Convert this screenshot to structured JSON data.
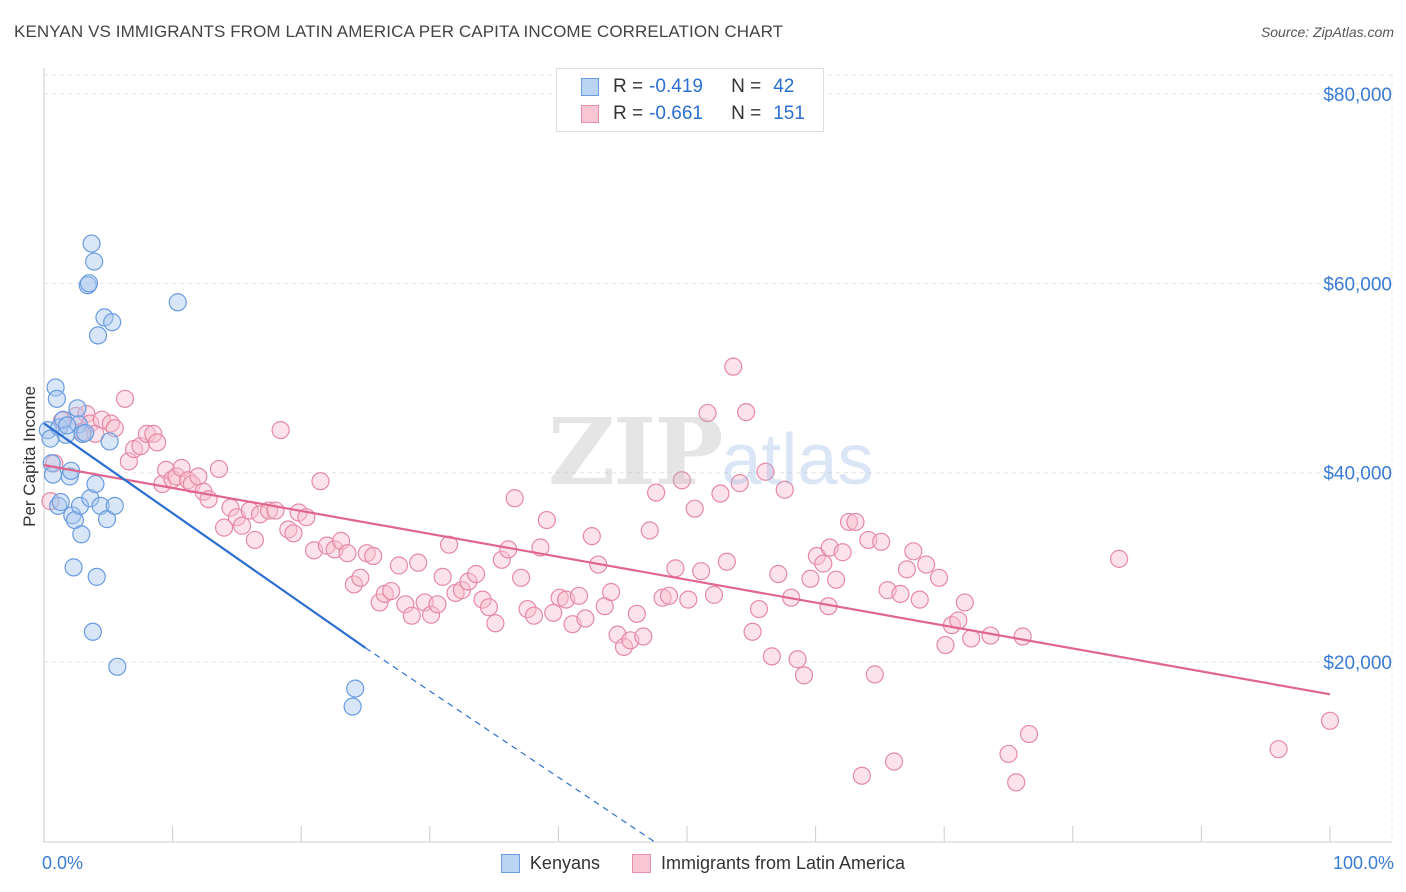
{
  "title": "KENYAN VS IMMIGRANTS FROM LATIN AMERICA PER CAPITA INCOME CORRELATION CHART",
  "source": "Source: ZipAtlas.com",
  "watermark": {
    "zip": "ZIP",
    "atlas": "atlas"
  },
  "legend": {
    "series1": {
      "r_label": "R =",
      "r_value": "-0.419",
      "n_label": "N =",
      "n_value": "42"
    },
    "series2": {
      "r_label": "R =",
      "r_value": "-0.661",
      "n_label": "N =",
      "n_value": "151"
    }
  },
  "bottom_legend": {
    "series1": "Kenyans",
    "series2": "Immigrants from Latin America"
  },
  "colors": {
    "blue_fill": "#a8c8f0",
    "blue_stroke": "#6a9ce0",
    "blue_line": "#2d6fd0",
    "pink_fill": "#f8bfd0",
    "pink_stroke": "#e58aa6",
    "pink_line": "#e0668e",
    "axis_label": "#3a7bd5",
    "grid": "#e3e3e3"
  },
  "chart_data": {
    "type": "scatter",
    "title": "KENYAN VS IMMIGRANTS FROM LATIN AMERICA PER CAPITA INCOME CORRELATION CHART",
    "xlabel": "",
    "ylabel": "Per Capita Income",
    "xlim": [
      0,
      100
    ],
    "ylim": [
      1000,
      82000
    ],
    "x_tick_labels": [
      "0.0%",
      "100.0%"
    ],
    "y_ticks": [
      20000,
      40000,
      60000,
      80000
    ],
    "y_tick_labels": [
      "$20,000",
      "$40,000",
      "$60,000",
      "$80,000"
    ],
    "grid": true,
    "legend_position": "top-center",
    "series": [
      {
        "name": "Kenyans",
        "color": "#6a9ce0",
        "trend": {
          "x": [
            0,
            25
          ],
          "y": [
            45200,
            21500
          ],
          "dashed_extension_to": [
            47.5,
            1000
          ]
        },
        "points": [
          [
            0.3,
            44500
          ],
          [
            0.5,
            43600
          ],
          [
            0.6,
            41000
          ],
          [
            0.7,
            39800
          ],
          [
            0.9,
            49000
          ],
          [
            1.0,
            47800
          ],
          [
            1.1,
            36500
          ],
          [
            1.2,
            44800
          ],
          [
            1.3,
            36900
          ],
          [
            1.5,
            45600
          ],
          [
            1.7,
            44000
          ],
          [
            2.0,
            39600
          ],
          [
            2.1,
            40200
          ],
          [
            2.2,
            35500
          ],
          [
            2.3,
            30000
          ],
          [
            2.4,
            35000
          ],
          [
            2.6,
            46800
          ],
          [
            2.7,
            45100
          ],
          [
            2.8,
            36500
          ],
          [
            2.9,
            33500
          ],
          [
            3.0,
            44100
          ],
          [
            3.2,
            44200
          ],
          [
            3.4,
            59800
          ],
          [
            3.5,
            60000
          ],
          [
            3.6,
            37300
          ],
          [
            3.7,
            64200
          ],
          [
            3.8,
            23200
          ],
          [
            3.9,
            62300
          ],
          [
            4.0,
            38800
          ],
          [
            4.1,
            29000
          ],
          [
            4.2,
            54500
          ],
          [
            4.4,
            36500
          ],
          [
            4.7,
            56400
          ],
          [
            4.9,
            35100
          ],
          [
            5.1,
            43300
          ],
          [
            5.3,
            55900
          ],
          [
            5.5,
            36500
          ],
          [
            5.7,
            19500
          ],
          [
            10.4,
            58000
          ],
          [
            24.2,
            17200
          ],
          [
            24.0,
            15300
          ],
          [
            1.8,
            45000
          ]
        ]
      },
      {
        "name": "Immigrants from Latin America",
        "color": "#e58aa6",
        "trend": {
          "x": [
            0,
            100
          ],
          "y": [
            40800,
            16600
          ]
        },
        "points": [
          [
            0.5,
            37000
          ],
          [
            0.8,
            41000
          ],
          [
            1.4,
            45500
          ],
          [
            2.5,
            46000
          ],
          [
            3.0,
            44300
          ],
          [
            3.3,
            46200
          ],
          [
            3.6,
            45200
          ],
          [
            4.0,
            44100
          ],
          [
            4.5,
            45600
          ],
          [
            5.2,
            45200
          ],
          [
            5.5,
            44700
          ],
          [
            6.3,
            47800
          ],
          [
            6.6,
            41200
          ],
          [
            7.0,
            42500
          ],
          [
            7.5,
            42800
          ],
          [
            8.0,
            44100
          ],
          [
            8.5,
            44100
          ],
          [
            8.8,
            43200
          ],
          [
            9.2,
            38800
          ],
          [
            9.5,
            40300
          ],
          [
            10.0,
            39300
          ],
          [
            10.3,
            39600
          ],
          [
            10.7,
            40500
          ],
          [
            11.2,
            39200
          ],
          [
            11.5,
            38800
          ],
          [
            12.0,
            39600
          ],
          [
            12.4,
            38000
          ],
          [
            12.8,
            37200
          ],
          [
            13.6,
            40400
          ],
          [
            14.0,
            34200
          ],
          [
            14.5,
            36300
          ],
          [
            15.0,
            35300
          ],
          [
            15.4,
            34400
          ],
          [
            16.0,
            36000
          ],
          [
            16.4,
            32900
          ],
          [
            16.8,
            35600
          ],
          [
            17.5,
            36000
          ],
          [
            18.0,
            36000
          ],
          [
            18.4,
            44500
          ],
          [
            19.0,
            34000
          ],
          [
            19.4,
            33600
          ],
          [
            19.8,
            35800
          ],
          [
            20.4,
            35300
          ],
          [
            21.0,
            31800
          ],
          [
            21.5,
            39100
          ],
          [
            22.0,
            32300
          ],
          [
            22.6,
            31900
          ],
          [
            23.1,
            32800
          ],
          [
            23.6,
            31500
          ],
          [
            24.1,
            28200
          ],
          [
            24.6,
            28900
          ],
          [
            25.1,
            31500
          ],
          [
            25.6,
            31200
          ],
          [
            26.1,
            26300
          ],
          [
            26.5,
            27200
          ],
          [
            27.0,
            27500
          ],
          [
            27.6,
            30200
          ],
          [
            28.1,
            26100
          ],
          [
            28.6,
            24900
          ],
          [
            29.1,
            30500
          ],
          [
            29.6,
            26300
          ],
          [
            30.1,
            25000
          ],
          [
            30.6,
            26100
          ],
          [
            31.0,
            29000
          ],
          [
            31.5,
            32400
          ],
          [
            32.0,
            27300
          ],
          [
            32.5,
            27600
          ],
          [
            33.0,
            28500
          ],
          [
            33.6,
            29300
          ],
          [
            34.1,
            26600
          ],
          [
            34.6,
            25800
          ],
          [
            35.1,
            24100
          ],
          [
            35.6,
            30800
          ],
          [
            36.1,
            31900
          ],
          [
            36.6,
            37300
          ],
          [
            37.1,
            28900
          ],
          [
            37.6,
            25600
          ],
          [
            38.1,
            24900
          ],
          [
            38.6,
            32100
          ],
          [
            39.1,
            35000
          ],
          [
            39.6,
            25200
          ],
          [
            40.1,
            26800
          ],
          [
            40.6,
            26600
          ],
          [
            41.1,
            24000
          ],
          [
            41.6,
            27000
          ],
          [
            42.1,
            24600
          ],
          [
            42.6,
            33300
          ],
          [
            43.1,
            30300
          ],
          [
            43.6,
            25900
          ],
          [
            44.1,
            27400
          ],
          [
            44.6,
            22900
          ],
          [
            45.1,
            21600
          ],
          [
            45.6,
            22300
          ],
          [
            46.1,
            25100
          ],
          [
            46.6,
            22700
          ],
          [
            47.1,
            33900
          ],
          [
            47.6,
            37900
          ],
          [
            48.1,
            26800
          ],
          [
            48.6,
            27000
          ],
          [
            49.1,
            29900
          ],
          [
            49.6,
            39200
          ],
          [
            50.1,
            26600
          ],
          [
            50.6,
            36200
          ],
          [
            51.1,
            29600
          ],
          [
            51.6,
            46300
          ],
          [
            52.1,
            27100
          ],
          [
            52.6,
            37800
          ],
          [
            53.1,
            30600
          ],
          [
            53.6,
            51200
          ],
          [
            54.1,
            38900
          ],
          [
            54.6,
            46400
          ],
          [
            55.1,
            23200
          ],
          [
            55.6,
            25600
          ],
          [
            56.1,
            40100
          ],
          [
            56.6,
            20600
          ],
          [
            57.1,
            29300
          ],
          [
            57.6,
            38200
          ],
          [
            58.1,
            26800
          ],
          [
            58.6,
            20300
          ],
          [
            59.1,
            18600
          ],
          [
            59.6,
            28800
          ],
          [
            60.1,
            31200
          ],
          [
            60.6,
            30400
          ],
          [
            61.1,
            32100
          ],
          [
            61.6,
            28700
          ],
          [
            62.1,
            31600
          ],
          [
            62.6,
            34800
          ],
          [
            63.1,
            34800
          ],
          [
            63.6,
            8000
          ],
          [
            64.1,
            32900
          ],
          [
            64.6,
            18700
          ],
          [
            65.1,
            32700
          ],
          [
            65.6,
            27600
          ],
          [
            66.1,
            9500
          ],
          [
            66.6,
            27200
          ],
          [
            67.1,
            29800
          ],
          [
            67.6,
            31700
          ],
          [
            68.1,
            26600
          ],
          [
            68.6,
            30300
          ],
          [
            69.6,
            28900
          ],
          [
            70.1,
            21800
          ],
          [
            70.6,
            23900
          ],
          [
            71.1,
            24400
          ],
          [
            71.6,
            26300
          ],
          [
            72.1,
            22500
          ],
          [
            73.6,
            22800
          ],
          [
            75.0,
            10300
          ],
          [
            75.6,
            7300
          ],
          [
            76.1,
            22700
          ],
          [
            76.6,
            12400
          ],
          [
            83.6,
            30900
          ],
          [
            96.0,
            10800
          ],
          [
            100.0,
            13800
          ],
          [
            61.0,
            25900
          ]
        ]
      }
    ]
  }
}
